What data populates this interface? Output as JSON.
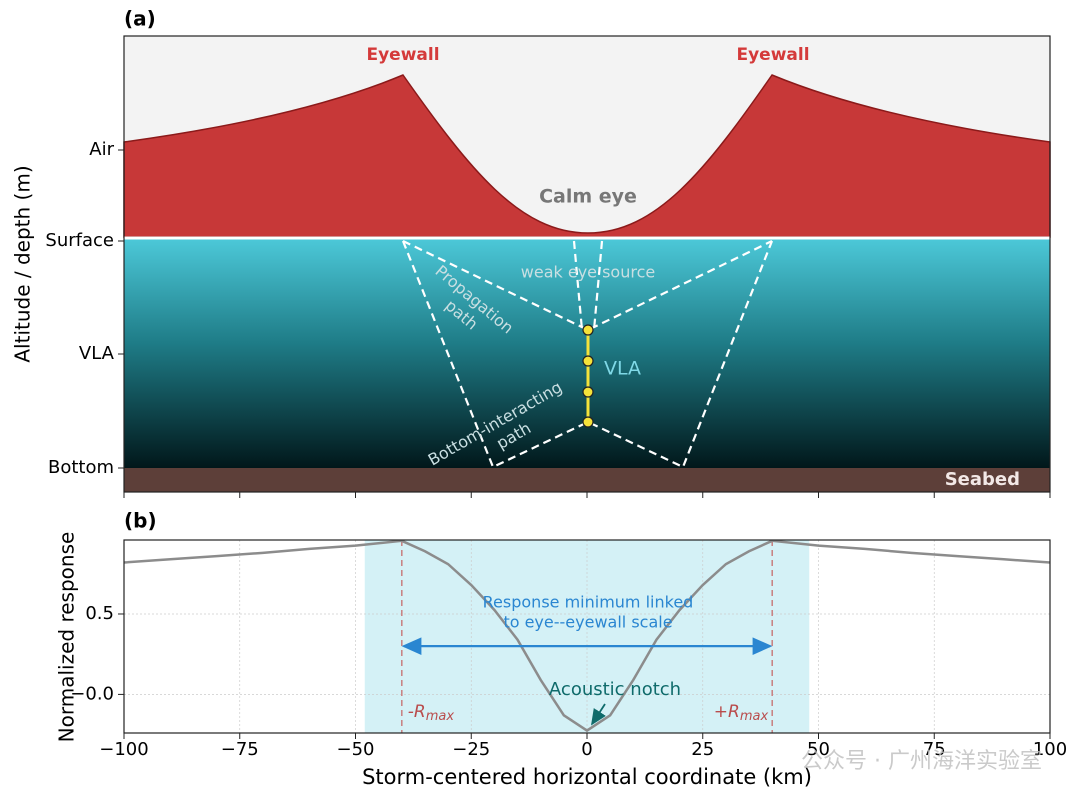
{
  "chart_data": [
    {
      "type": "schematic",
      "panel_label": "(a)",
      "ylabel": "Altitude / depth (m)",
      "ylabels": [
        "Air",
        "Surface",
        "VLA",
        "Bottom"
      ],
      "annotations": {
        "eyewall_left": "Eyewall",
        "eyewall_right": "Eyewall",
        "calm_eye": "Calm eye",
        "weak_source": "weak eye source",
        "propagation": [
          "Propagation",
          "path"
        ],
        "vla": "VLA",
        "bottom_path": [
          "Bottom-interacting",
          "path"
        ],
        "seabed": "Seabed"
      }
    },
    {
      "type": "line",
      "panel_label": "(b)",
      "ylabel": "Normalized response",
      "xlabel": "Storm-centered horizontal coordinate (km)",
      "x": [
        -100,
        -90,
        -80,
        -70,
        -60,
        -50,
        -40,
        -35,
        -30,
        -25,
        -20,
        -15,
        -10,
        -5,
        0,
        5,
        10,
        15,
        20,
        25,
        30,
        35,
        40,
        50,
        60,
        70,
        80,
        90,
        100
      ],
      "series": [
        {
          "color": "#8c8c8c",
          "values": [
            0.82,
            0.84,
            0.86,
            0.88,
            0.905,
            0.925,
            0.955,
            0.89,
            0.81,
            0.68,
            0.525,
            0.34,
            0.09,
            -0.13,
            -0.225,
            -0.13,
            0.09,
            0.34,
            0.525,
            0.68,
            0.81,
            0.89,
            0.955,
            0.925,
            0.905,
            0.88,
            0.86,
            0.84,
            0.82
          ]
        }
      ],
      "xlim": [
        -100,
        100
      ],
      "xticks": [
        {
          "value": -100,
          "label": "−100"
        },
        {
          "value": -75,
          "label": "−75"
        },
        {
          "value": -50,
          "label": "−50"
        },
        {
          "value": -25,
          "label": "−25"
        },
        0,
        25,
        50,
        75,
        100
      ],
      "ylim": [
        -0.24,
        0.96
      ],
      "yticks": [
        {
          "value": 0,
          "label": "−0.0"
        },
        0.5
      ],
      "grid": true,
      "shade": [
        -48,
        48
      ],
      "shade_color": "#d4f1f6",
      "rmax_lines": [
        -40,
        40
      ],
      "rmax_labels": [
        {
          "text": "-R",
          "sub": "max"
        },
        {
          "text": "+R",
          "sub": "max"
        }
      ],
      "arrow": {
        "x": [
          -40,
          40
        ],
        "y": 0.3,
        "color": "#2a86d1"
      },
      "annotations": {
        "response": [
          "Response minimum linked",
          "to eye--eyewall scale"
        ],
        "notch": "Acoustic notch"
      },
      "watermark": "公众号 · 广州海洋实验室"
    }
  ]
}
